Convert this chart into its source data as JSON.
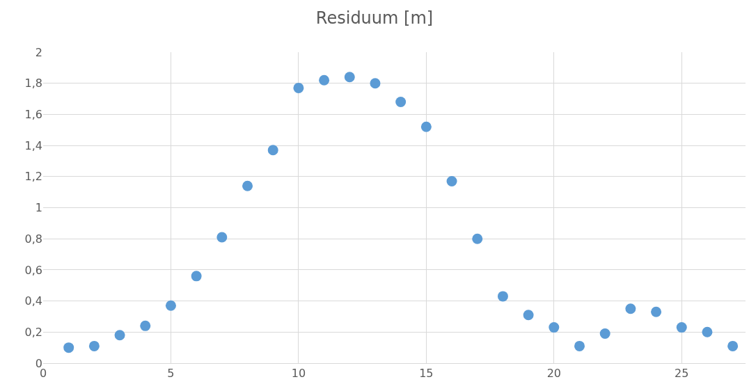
{
  "chart_data": {
    "type": "scatter",
    "title": "Residuum [m]",
    "x": [
      1,
      2,
      3,
      4,
      5,
      6,
      7,
      8,
      9,
      10,
      11,
      12,
      13,
      14,
      15,
      16,
      17,
      18,
      19,
      20,
      21,
      22,
      23,
      24,
      25,
      26,
      27
    ],
    "series": [
      {
        "color": "#5b9bd5",
        "values": [
          0.1,
          0.11,
          0.18,
          0.24,
          0.37,
          0.56,
          0.81,
          1.14,
          1.37,
          1.77,
          1.82,
          1.84,
          1.8,
          1.68,
          1.52,
          1.17,
          0.8,
          0.43,
          0.31,
          0.23,
          0.11,
          0.19,
          0.35,
          0.33,
          0.23,
          0.2,
          0.11
        ]
      }
    ],
    "xlim": [
      0,
      27.5
    ],
    "xticks": [
      0,
      5,
      10,
      15,
      20,
      25
    ],
    "ylim": [
      0,
      2
    ],
    "yticks": [
      0,
      {
        "value": 0.2,
        "label": "0,2"
      },
      {
        "value": 0.4,
        "label": "0,4"
      },
      {
        "value": 0.6,
        "label": "0,6"
      },
      {
        "value": 0.8,
        "label": "0,8"
      },
      1,
      {
        "value": 1.2,
        "label": "1,2"
      },
      {
        "value": 1.4,
        "label": "1,4"
      },
      {
        "value": 1.6,
        "label": "1,6"
      },
      {
        "value": 1.8,
        "label": "1,8"
      },
      2
    ],
    "grid": true,
    "marker": "circle"
  }
}
